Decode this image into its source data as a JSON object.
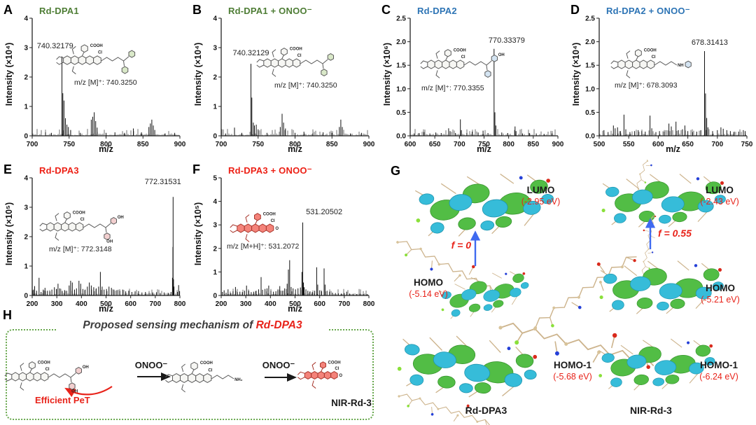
{
  "colors": {
    "green": "#4e7d35",
    "blue": "#2d74b5",
    "red": "#ed2015",
    "arrow_blue": "#3f6af0",
    "box_green": "#69a84e",
    "blob_green": "#52bd45",
    "blob_cyan": "#36bcd9",
    "stick_tan": "#cdb48d"
  },
  "chart_data": [
    {
      "panel": "A",
      "type": "stem",
      "title": "Rd-DPA1",
      "title_color": "#4e7d35",
      "xlabel": "m/z",
      "ylabel": "Intensity (×10⁴)",
      "xlim": [
        700,
        900
      ],
      "ylim": [
        0,
        4
      ],
      "xticks": [
        700,
        750,
        800,
        850,
        900
      ],
      "yticks": [
        0,
        1,
        2,
        3,
        4
      ],
      "ydec": 0,
      "main_peak_label": "740.32179",
      "structure_label": "m/z [M]⁺: 740.3250",
      "structure": {
        "accent": "#d9e8c8",
        "atoms": {
          "cooh": "COOH",
          "cl": "Cl"
        }
      },
      "peaks": [
        [
          718,
          0.12
        ],
        [
          726,
          0.1
        ],
        [
          740.3,
          2.7
        ],
        [
          741.5,
          1.45
        ],
        [
          743,
          1.2
        ],
        [
          745,
          0.6
        ],
        [
          747,
          0.38
        ],
        [
          749,
          0.3
        ],
        [
          752,
          0.2
        ],
        [
          765,
          0.1
        ],
        [
          780,
          0.55
        ],
        [
          782,
          0.65
        ],
        [
          784,
          0.8
        ],
        [
          786,
          0.5
        ],
        [
          788,
          0.28
        ],
        [
          800,
          0.1
        ],
        [
          812,
          0.12
        ],
        [
          825,
          0.1
        ],
        [
          837,
          0.25
        ],
        [
          848,
          0.12
        ],
        [
          858,
          0.3
        ],
        [
          860,
          0.42
        ],
        [
          862,
          0.55
        ],
        [
          864,
          0.35
        ],
        [
          866,
          0.2
        ],
        [
          880,
          0.08
        ],
        [
          893,
          0.1
        ]
      ]
    },
    {
      "panel": "B",
      "type": "stem",
      "title": "Rd-DPA1 + ONOO⁻",
      "title_color": "#4e7d35",
      "xlabel": "m/z",
      "ylabel": "Intensity (×10⁴)",
      "xlim": [
        700,
        900
      ],
      "ylim": [
        0,
        4
      ],
      "xticks": [
        700,
        750,
        800,
        850,
        900
      ],
      "yticks": [
        0,
        1,
        2,
        3,
        4
      ],
      "ydec": 0,
      "main_peak_label": "740.32129",
      "structure_label": "m/z [M]⁺: 740.3250",
      "structure": {
        "accent": "#d9e8c8",
        "atoms": {
          "cooh": "COOH",
          "cl": "Cl"
        }
      },
      "peaks": [
        [
          706,
          0.08
        ],
        [
          718,
          0.28
        ],
        [
          728,
          0.1
        ],
        [
          740.3,
          2.45
        ],
        [
          741.5,
          1.3
        ],
        [
          743.5,
          0.45
        ],
        [
          745,
          0.35
        ],
        [
          747.5,
          0.38
        ],
        [
          750,
          0.22
        ],
        [
          762,
          0.1
        ],
        [
          780,
          0.3
        ],
        [
          782.5,
          0.75
        ],
        [
          784.5,
          0.45
        ],
        [
          787,
          0.25
        ],
        [
          800,
          0.1
        ],
        [
          812,
          0.14
        ],
        [
          824,
          0.08
        ],
        [
          838,
          0.12
        ],
        [
          850,
          0.1
        ],
        [
          860,
          0.3
        ],
        [
          862,
          0.55
        ],
        [
          864,
          0.3
        ],
        [
          875,
          0.08
        ],
        [
          890,
          0.1
        ]
      ]
    },
    {
      "panel": "C",
      "type": "stem",
      "title": "Rd-DPA2",
      "title_color": "#2d74b5",
      "xlabel": "m/z",
      "ylabel": "Intensity (×10⁶)",
      "xlim": [
        600,
        900
      ],
      "ylim": [
        0,
        2.5
      ],
      "xticks": [
        600,
        650,
        700,
        750,
        800,
        850,
        900
      ],
      "yticks": [
        0,
        0.5,
        1,
        1.5,
        2,
        2.5
      ],
      "ydec": 1,
      "main_peak_label": "770.33379",
      "structure_label": "m/z [M]⁺: 770.3355",
      "structure": {
        "accent": "#d4e4f2",
        "atoms": {
          "cooh": "COOH",
          "cl": "Cl",
          "end1": "OH"
        }
      },
      "peaks": [
        [
          608,
          0.05
        ],
        [
          618,
          0.06
        ],
        [
          628,
          0.08
        ],
        [
          640,
          0.05
        ],
        [
          652,
          0.07
        ],
        [
          663,
          0.06
        ],
        [
          678,
          0.16
        ],
        [
          681,
          0.1
        ],
        [
          692,
          0.06
        ],
        [
          702,
          0.35
        ],
        [
          704,
          0.12
        ],
        [
          715,
          0.06
        ],
        [
          726,
          0.09
        ],
        [
          738,
          0.07
        ],
        [
          748,
          0.11
        ],
        [
          758,
          0.06
        ],
        [
          770.3,
          1.85
        ],
        [
          772,
          0.5
        ],
        [
          774,
          0.22
        ],
        [
          786,
          0.07
        ],
        [
          798,
          0.06
        ],
        [
          813,
          0.2
        ],
        [
          815,
          0.1
        ],
        [
          828,
          0.05
        ],
        [
          842,
          0.06
        ],
        [
          856,
          0.05
        ],
        [
          872,
          0.04
        ],
        [
          888,
          0.05
        ]
      ]
    },
    {
      "panel": "D",
      "type": "stem",
      "title": "Rd-DPA2 + ONOO⁻",
      "title_color": "#2d74b5",
      "xlabel": "m/z",
      "ylabel": "Intensity (×10⁴)",
      "xlim": [
        500,
        750
      ],
      "ylim": [
        0,
        2.5
      ],
      "xticks": [
        500,
        550,
        600,
        650,
        700,
        750
      ],
      "yticks": [
        0,
        0.5,
        1,
        1.5,
        2,
        2.5
      ],
      "ydec": 1,
      "main_peak_label": "678.31413",
      "structure_label": "m/z [M]⁺: 678.3093",
      "structure": {
        "accent": "#d4e4f2",
        "atoms": {
          "cooh": "COOH",
          "cl": "Cl",
          "end1": "NH"
        }
      },
      "peaks": [
        [
          508,
          0.12
        ],
        [
          515,
          0.08
        ],
        [
          524,
          0.22
        ],
        [
          527,
          0.16
        ],
        [
          531,
          0.18
        ],
        [
          536,
          0.1
        ],
        [
          542,
          0.45
        ],
        [
          545,
          0.14
        ],
        [
          552,
          0.08
        ],
        [
          560,
          0.1
        ],
        [
          566,
          0.12
        ],
        [
          572,
          0.1
        ],
        [
          578,
          0.09
        ],
        [
          586,
          0.43
        ],
        [
          589,
          0.16
        ],
        [
          596,
          0.08
        ],
        [
          602,
          0.1
        ],
        [
          610,
          0.09
        ],
        [
          618,
          0.26
        ],
        [
          622,
          0.2
        ],
        [
          630,
          0.3
        ],
        [
          634,
          0.12
        ],
        [
          641,
          0.14
        ],
        [
          645,
          0.22
        ],
        [
          650,
          0.1
        ],
        [
          658,
          0.08
        ],
        [
          665,
          0.09
        ],
        [
          672,
          0.12
        ],
        [
          678.3,
          1.8
        ],
        [
          680,
          0.9
        ],
        [
          682,
          0.38
        ],
        [
          684,
          0.18
        ],
        [
          692,
          0.1
        ],
        [
          700,
          0.12
        ],
        [
          706,
          0.18
        ],
        [
          710,
          0.15
        ],
        [
          716,
          0.12
        ],
        [
          722,
          0.1
        ],
        [
          728,
          0.08
        ],
        [
          736,
          0.09
        ],
        [
          744,
          0.12
        ],
        [
          747,
          0.1
        ]
      ]
    },
    {
      "panel": "E",
      "type": "stem",
      "title": "Rd-DPA3",
      "title_color": "#ed2015",
      "xlabel": "m/z",
      "ylabel": "Intensity (×10⁵)",
      "xlim": [
        200,
        800
      ],
      "ylim": [
        0,
        4
      ],
      "xticks": [
        200,
        300,
        400,
        500,
        600,
        700,
        800
      ],
      "yticks": [
        0,
        1,
        2,
        3,
        4
      ],
      "ydec": 0,
      "main_peak_label": "772.31531",
      "structure_label": "m/z [M]⁺: 772.3148",
      "structure": {
        "accent": "#f2cfcf",
        "atoms": {
          "cooh": "COOH",
          "cl": "Cl",
          "end1": "OH",
          "end2": "OH"
        }
      },
      "peaks": [
        [
          205,
          0.2
        ],
        [
          210,
          0.32
        ],
        [
          218,
          0.16
        ],
        [
          228,
          0.6
        ],
        [
          236,
          0.12
        ],
        [
          245,
          0.2
        ],
        [
          252,
          0.26
        ],
        [
          262,
          0.16
        ],
        [
          272,
          0.14
        ],
        [
          280,
          0.2
        ],
        [
          290,
          0.28
        ],
        [
          298,
          0.22
        ],
        [
          305,
          0.4
        ],
        [
          312,
          0.24
        ],
        [
          322,
          0.14
        ],
        [
          332,
          0.18
        ],
        [
          340,
          0.16
        ],
        [
          350,
          0.34
        ],
        [
          356,
          0.5
        ],
        [
          363,
          0.44
        ],
        [
          372,
          0.2
        ],
        [
          380,
          0.24
        ],
        [
          390,
          0.5
        ],
        [
          397,
          0.4
        ],
        [
          406,
          0.22
        ],
        [
          415,
          0.2
        ],
        [
          424,
          0.3
        ],
        [
          432,
          0.44
        ],
        [
          440,
          0.34
        ],
        [
          450,
          0.28
        ],
        [
          460,
          0.24
        ],
        [
          470,
          0.3
        ],
        [
          477,
          0.8
        ],
        [
          484,
          0.3
        ],
        [
          492,
          0.2
        ],
        [
          502,
          0.22
        ],
        [
          512,
          0.3
        ],
        [
          522,
          0.26
        ],
        [
          532,
          0.2
        ],
        [
          544,
          0.18
        ],
        [
          556,
          0.16
        ],
        [
          568,
          0.2
        ],
        [
          580,
          0.14
        ],
        [
          592,
          0.16
        ],
        [
          605,
          0.12
        ],
        [
          618,
          0.14
        ],
        [
          632,
          0.15
        ],
        [
          646,
          0.1
        ],
        [
          660,
          0.12
        ],
        [
          675,
          0.09
        ],
        [
          690,
          0.1
        ],
        [
          705,
          0.11
        ],
        [
          720,
          0.08
        ],
        [
          736,
          0.1
        ],
        [
          752,
          0.09
        ],
        [
          764,
          0.12
        ],
        [
          770,
          0.6
        ],
        [
          771.5,
          1.65
        ],
        [
          772.3,
          3.35
        ],
        [
          774,
          0.55
        ],
        [
          776,
          0.3
        ],
        [
          790,
          0.12
        ],
        [
          795,
          0.35
        ],
        [
          799,
          0.15
        ]
      ]
    },
    {
      "panel": "F",
      "type": "stem",
      "title": "Rd-DPA3 + ONOO⁻",
      "title_color": "#ed2015",
      "xlabel": "m/z",
      "ylabel": "Intensity (×10⁵)",
      "xlim": [
        200,
        800
      ],
      "ylim": [
        0,
        5
      ],
      "xticks": [
        200,
        300,
        400,
        500,
        600,
        700,
        800
      ],
      "yticks": [
        0,
        1,
        2,
        3,
        4,
        5
      ],
      "ydec": 0,
      "main_peak_label": "531.20502",
      "structure_label": "m/z [M+H]⁺: 531.2072",
      "structure": {
        "accent": "#f4837a",
        "atoms": {
          "cooh": "COOH",
          "cl": "Cl",
          "end1": "O"
        }
      },
      "peaks": [
        [
          205,
          0.15
        ],
        [
          212,
          0.22
        ],
        [
          220,
          0.12
        ],
        [
          228,
          0.26
        ],
        [
          238,
          0.1
        ],
        [
          248,
          0.18
        ],
        [
          258,
          0.36
        ],
        [
          266,
          0.14
        ],
        [
          276,
          0.16
        ],
        [
          286,
          0.14
        ],
        [
          295,
          0.2
        ],
        [
          303,
          0.42
        ],
        [
          312,
          0.2
        ],
        [
          322,
          0.14
        ],
        [
          332,
          0.16
        ],
        [
          342,
          0.2
        ],
        [
          352,
          0.26
        ],
        [
          362,
          0.78
        ],
        [
          368,
          0.24
        ],
        [
          378,
          0.28
        ],
        [
          386,
          0.3
        ],
        [
          393,
          0.42
        ],
        [
          402,
          0.2
        ],
        [
          412,
          0.16
        ],
        [
          422,
          0.18
        ],
        [
          430,
          0.22
        ],
        [
          438,
          0.4
        ],
        [
          448,
          0.2
        ],
        [
          458,
          0.3
        ],
        [
          468,
          0.5
        ],
        [
          473,
          1.1
        ],
        [
          478,
          1.5
        ],
        [
          484,
          0.36
        ],
        [
          492,
          0.3
        ],
        [
          502,
          0.26
        ],
        [
          512,
          0.3
        ],
        [
          522,
          0.34
        ],
        [
          528,
          1.0
        ],
        [
          531.2,
          3.1
        ],
        [
          534,
          0.55
        ],
        [
          537,
          0.35
        ],
        [
          544,
          0.26
        ],
        [
          552,
          0.2
        ],
        [
          560,
          0.16
        ],
        [
          570,
          0.14
        ],
        [
          580,
          0.2
        ],
        [
          588,
          1.2
        ],
        [
          592,
          0.46
        ],
        [
          600,
          0.22
        ],
        [
          608,
          0.18
        ],
        [
          618,
          1.15
        ],
        [
          622,
          0.46
        ],
        [
          630,
          0.2
        ],
        [
          640,
          0.16
        ],
        [
          652,
          0.12
        ],
        [
          664,
          0.1
        ],
        [
          676,
          0.09
        ],
        [
          688,
          0.08
        ],
        [
          700,
          0.1
        ],
        [
          710,
          0.16
        ],
        [
          722,
          0.08
        ],
        [
          736,
          0.07
        ],
        [
          750,
          0.06
        ],
        [
          764,
          0.07
        ],
        [
          778,
          0.06
        ],
        [
          792,
          0.05
        ]
      ]
    }
  ],
  "panel_g": {
    "label": "G",
    "left": {
      "name": "Rd-DPA3",
      "lumo": {
        "label": "LUMO",
        "energy": "(-2.95 eV)"
      },
      "f_label": "f = 0",
      "homo": {
        "label": "HOMO",
        "energy": "(-5.14 eV)"
      },
      "homo1": {
        "label": "HOMO-1",
        "energy": "(-5.68 eV)"
      }
    },
    "right": {
      "name": "NIR-Rd-3",
      "lumo": {
        "label": "LUMO",
        "energy": "(-2.43 eV)"
      },
      "f_label": "f = 0.55",
      "homo": {
        "label": "HOMO",
        "energy": "(-5.21 eV)"
      },
      "homo1": {
        "label": "HOMO-1",
        "energy": "(-6.24 eV)"
      }
    }
  },
  "panel_h": {
    "label": "H",
    "title_prefix": "Proposed sensing mechanism of ",
    "title_highlight": "Rd-DPA3",
    "onoo1": "ONOO⁻",
    "onoo2": "ONOO⁻",
    "pet": "Efficient PeT",
    "product": "NIR-Rd-3",
    "structures": [
      {
        "atoms": {
          "cooh": "COOH",
          "cl": "Cl",
          "end1": "OH",
          "end2": "OH"
        }
      },
      {
        "atoms": {
          "cooh": "COOH",
          "cl": "Cl",
          "end1": "NH₂"
        }
      },
      {
        "atoms": {
          "cooh": "COOH",
          "cl": "Cl",
          "end1": "O"
        }
      }
    ]
  }
}
